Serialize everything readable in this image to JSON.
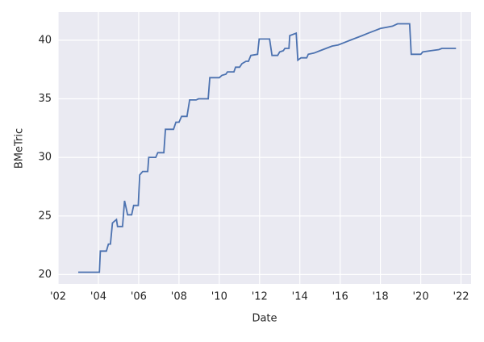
{
  "chart_data": {
    "type": "line",
    "x_label": "Date",
    "y_label": "BMeTric",
    "x": [
      2003.0,
      2004.05,
      2004.1,
      2004.4,
      2004.5,
      2004.6,
      2004.7,
      2004.9,
      2004.95,
      2005.2,
      2005.3,
      2005.45,
      2005.65,
      2005.75,
      2005.98,
      2006.05,
      2006.2,
      2006.45,
      2006.5,
      2006.85,
      2006.95,
      2007.25,
      2007.33,
      2007.73,
      2007.85,
      2008.0,
      2008.13,
      2008.4,
      2008.53,
      2008.85,
      2008.97,
      2009.45,
      2009.53,
      2010.0,
      2010.13,
      2010.33,
      2010.41,
      2010.73,
      2010.81,
      2011.01,
      2011.13,
      2011.33,
      2011.45,
      2011.57,
      2011.9,
      2011.98,
      2012.5,
      2012.62,
      2012.9,
      2013.0,
      2013.18,
      2013.26,
      2013.46,
      2013.5,
      2013.82,
      2013.9,
      2014.06,
      2014.34,
      2014.42,
      2014.7,
      2015.0,
      2015.3,
      2015.6,
      2015.9,
      2016.2,
      2016.5,
      2016.8,
      2017.1,
      2017.4,
      2017.7,
      2018.0,
      2018.3,
      2018.6,
      2018.85,
      2019.45,
      2019.53,
      2020.0,
      2020.1,
      2020.5,
      2020.9,
      2021.05,
      2021.75
    ],
    "series": [
      {
        "name": "BMeTric",
        "color": "#4c72b0",
        "values": [
          20.2,
          20.2,
          22.0,
          22.0,
          22.6,
          22.6,
          24.4,
          24.7,
          24.1,
          24.1,
          26.3,
          25.1,
          25.1,
          25.9,
          25.9,
          28.5,
          28.8,
          28.8,
          30.0,
          30.0,
          30.4,
          30.4,
          32.4,
          32.4,
          33.0,
          33.0,
          33.5,
          33.5,
          34.9,
          34.9,
          35.0,
          35.0,
          36.8,
          36.8,
          37.0,
          37.1,
          37.3,
          37.3,
          37.7,
          37.7,
          38.0,
          38.2,
          38.2,
          38.7,
          38.8,
          40.1,
          40.1,
          38.7,
          38.7,
          39.0,
          39.1,
          39.3,
          39.3,
          40.4,
          40.6,
          38.3,
          38.5,
          38.5,
          38.8,
          38.9,
          39.1,
          39.3,
          39.5,
          39.6,
          39.8,
          40.0,
          40.2,
          40.4,
          40.6,
          40.8,
          41.0,
          41.1,
          41.2,
          41.4,
          41.4,
          38.8,
          38.8,
          39.0,
          39.1,
          39.2,
          39.3,
          39.3
        ]
      }
    ],
    "xlim": [
      2002,
      2022.5
    ],
    "ylim": [
      19.2,
      42.4
    ],
    "xticks": [
      {
        "value": 2002,
        "label": "'02"
      },
      {
        "value": 2004,
        "label": "'04"
      },
      {
        "value": 2006,
        "label": "'06"
      },
      {
        "value": 2008,
        "label": "'08"
      },
      {
        "value": 2010,
        "label": "'10"
      },
      {
        "value": 2012,
        "label": "'12"
      },
      {
        "value": 2014,
        "label": "'14"
      },
      {
        "value": 2016,
        "label": "'16"
      },
      {
        "value": 2018,
        "label": "'18"
      },
      {
        "value": 2020,
        "label": "'20"
      },
      {
        "value": 2022,
        "label": "'22"
      }
    ],
    "yticks": [
      20,
      25,
      30,
      35,
      40
    ],
    "grid": true
  }
}
